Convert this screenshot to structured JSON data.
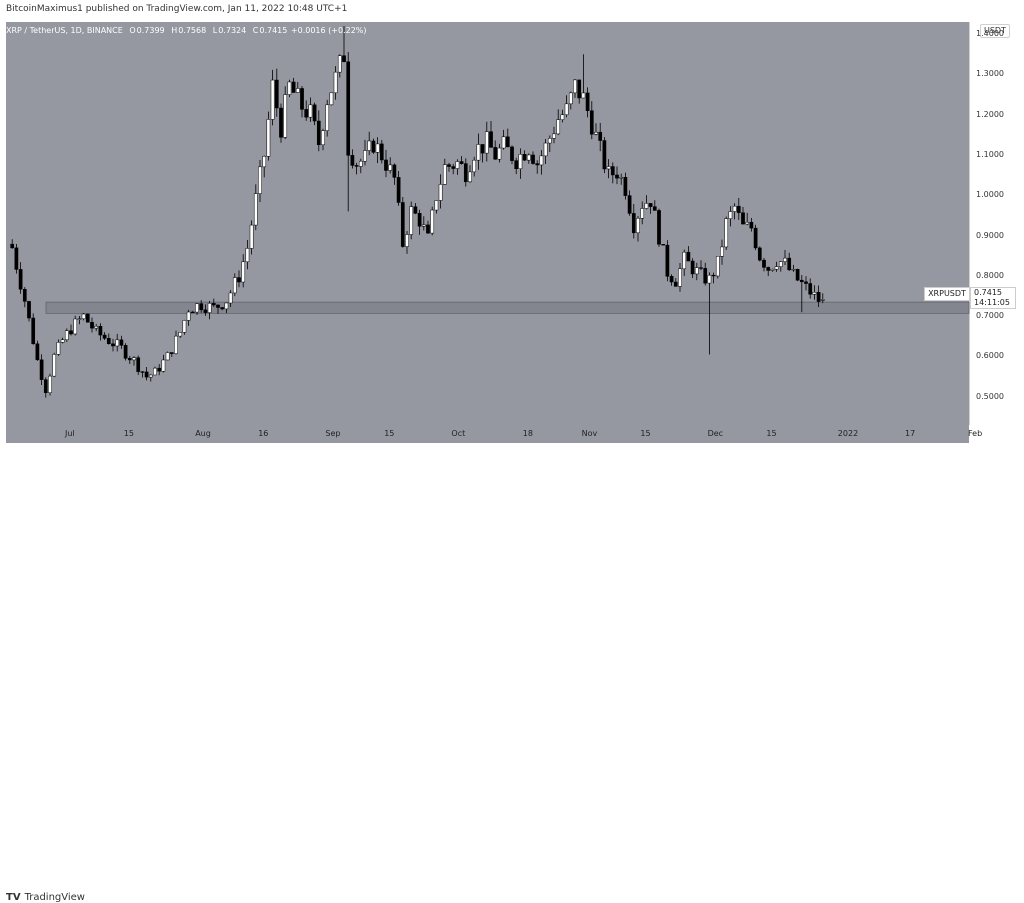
{
  "publisher": "BitcoinMaximus1 published on TradingView.com, Jan 11, 2022 10:48 UTC+1",
  "legend": {
    "symbol": "XRP / TetherUS, 1D, BINANCE",
    "o_label": "O",
    "o": "0.7399",
    "h_label": "H",
    "h": "0.7568",
    "l_label": "L",
    "l": "0.7324",
    "c_label": "C",
    "c": "0.7415",
    "change": "+0.0016 (+0.22%)"
  },
  "currency": "USDT",
  "symbol_tag": "XRPUSDT",
  "last_price": "0.7415",
  "countdown": "14:11:05",
  "footer_brand": "TradingView",
  "footer_logo": "TV",
  "colors": {
    "background": "#9598a1",
    "bull": "#ffffff",
    "bear": "#000000",
    "zone": "#7c7f88"
  },
  "chart_data": {
    "type": "candlestick",
    "title": "XRP / TetherUS, 1D, BINANCE",
    "ylim": [
      0.43,
      1.43
    ],
    "y_ticks": [
      {
        "label": "0.5000",
        "value": 0.5
      },
      {
        "label": "0.6000",
        "value": 0.6
      },
      {
        "label": "0.7000",
        "value": 0.7
      },
      {
        "label": "0.8000",
        "value": 0.8
      },
      {
        "label": "0.9000",
        "value": 0.9
      },
      {
        "label": "1.0000",
        "value": 1.0
      },
      {
        "label": "1.1000",
        "value": 1.1
      },
      {
        "label": "1.2000",
        "value": 1.2
      },
      {
        "label": "1.3000",
        "value": 1.3
      },
      {
        "label": "1.4000",
        "value": 1.4
      }
    ],
    "x_ticks": [
      {
        "label": "Jul",
        "day": 0
      },
      {
        "label": "15",
        "day": 14
      },
      {
        "label": "Aug",
        "day": 31
      },
      {
        "label": "16",
        "day": 46
      },
      {
        "label": "Sep",
        "day": 62
      },
      {
        "label": "15",
        "day": 76
      },
      {
        "label": "Oct",
        "day": 92
      },
      {
        "label": "18",
        "day": 109
      },
      {
        "label": "Nov",
        "day": 123
      },
      {
        "label": "15",
        "day": 137
      },
      {
        "label": "Dec",
        "day": 153
      },
      {
        "label": "15",
        "day": 167
      },
      {
        "label": "2022",
        "day": 184
      },
      {
        "label": "17",
        "day": 200
      },
      {
        "label": "Feb",
        "day": 215
      }
    ],
    "support_zone": [
      0.707,
      0.735
    ],
    "waypoints": [
      [
        -14,
        0.87
      ],
      [
        -11,
        0.74
      ],
      [
        -8,
        0.59
      ],
      [
        -6,
        0.52
      ],
      [
        -4,
        0.6
      ],
      [
        -2,
        0.64
      ],
      [
        0,
        0.67
      ],
      [
        3,
        0.7
      ],
      [
        6,
        0.66
      ],
      [
        9,
        0.64
      ],
      [
        12,
        0.62
      ],
      [
        15,
        0.59
      ],
      [
        18,
        0.55
      ],
      [
        20,
        0.56
      ],
      [
        23,
        0.6
      ],
      [
        26,
        0.66
      ],
      [
        28,
        0.72
      ],
      [
        31,
        0.73
      ],
      [
        34,
        0.72
      ],
      [
        37,
        0.74
      ],
      [
        40,
        0.8
      ],
      [
        42,
        0.87
      ],
      [
        44,
        0.99
      ],
      [
        46,
        1.1
      ],
      [
        48,
        1.27
      ],
      [
        50,
        1.17
      ],
      [
        52,
        1.27
      ],
      [
        55,
        1.22
      ],
      [
        57,
        1.2
      ],
      [
        59,
        1.13
      ],
      [
        61,
        1.24
      ],
      [
        63,
        1.29
      ],
      [
        65,
        1.35
      ],
      [
        66,
        1.12
      ],
      [
        68,
        1.08
      ],
      [
        70,
        1.09
      ],
      [
        72,
        1.13
      ],
      [
        74,
        1.1
      ],
      [
        77,
        1.04
      ],
      [
        79,
        0.88
      ],
      [
        81,
        0.96
      ],
      [
        83,
        0.94
      ],
      [
        85,
        0.89
      ],
      [
        87,
        1.0
      ],
      [
        89,
        1.07
      ],
      [
        92,
        1.08
      ],
      [
        94,
        1.06
      ],
      [
        96,
        1.11
      ],
      [
        99,
        1.13
      ],
      [
        101,
        1.1
      ],
      [
        103,
        1.12
      ],
      [
        106,
        1.09
      ],
      [
        109,
        1.12
      ],
      [
        111,
        1.08
      ],
      [
        113,
        1.12
      ],
      [
        116,
        1.19
      ],
      [
        118,
        1.21
      ],
      [
        120,
        1.27
      ],
      [
        122,
        1.24
      ],
      [
        124,
        1.18
      ],
      [
        126,
        1.11
      ],
      [
        128,
        1.05
      ],
      [
        130,
        1.06
      ],
      [
        132,
        1.02
      ],
      [
        134,
        0.93
      ],
      [
        136,
        0.98
      ],
      [
        138,
        0.99
      ],
      [
        140,
        0.9
      ],
      [
        142,
        0.81
      ],
      [
        144,
        0.79
      ],
      [
        146,
        0.84
      ],
      [
        148,
        0.82
      ],
      [
        150,
        0.8
      ],
      [
        152,
        0.79
      ],
      [
        154,
        0.83
      ],
      [
        156,
        0.93
      ],
      [
        158,
        0.97
      ],
      [
        160,
        0.92
      ],
      [
        162,
        0.92
      ],
      [
        164,
        0.85
      ],
      [
        166,
        0.82
      ],
      [
        168,
        0.84
      ],
      [
        170,
        0.83
      ],
      [
        172,
        0.8
      ],
      [
        174,
        0.78
      ],
      [
        176,
        0.76
      ],
      [
        178,
        0.74
      ],
      [
        179,
        0.7415
      ]
    ],
    "spike_wicks": [
      {
        "day": 152,
        "low": 0.605
      },
      {
        "day": 65,
        "high": 1.42
      },
      {
        "day": 66,
        "low": 0.96
      },
      {
        "day": 79,
        "low": 0.87
      },
      {
        "day": 122,
        "high": 1.35
      },
      {
        "day": 174,
        "low": 0.71
      }
    ],
    "last": 0.7415
  }
}
